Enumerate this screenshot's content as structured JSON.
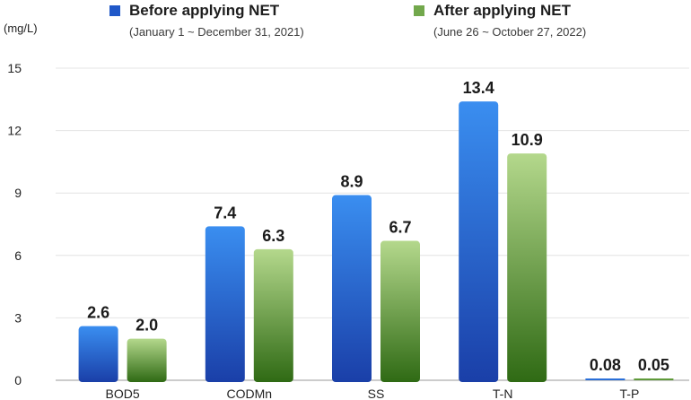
{
  "chart_data": {
    "type": "bar",
    "unit_label": "(mg/L)",
    "categories": [
      "BOD5",
      "CODMn",
      "SS",
      "T-N",
      "T-P"
    ],
    "series": [
      {
        "name": "Before applying NET",
        "period": "(January 1 ~ December 31, 2021)",
        "color": "#2060d8",
        "values": [
          2.6,
          7.4,
          8.9,
          13.4,
          0.08
        ],
        "labels": [
          "2.6",
          "7.4",
          "8.9",
          "13.4",
          "0.08"
        ]
      },
      {
        "name": "After applying NET",
        "period": "(June 26 ~ October 27, 2022)",
        "color": "#72a84c",
        "values": [
          2.0,
          6.3,
          6.7,
          10.9,
          0.05
        ],
        "labels": [
          "2.0",
          "6.3",
          "6.7",
          "10.9",
          "0.05"
        ]
      }
    ],
    "yticks": [
      "0",
      "3",
      "6",
      "9",
      "12",
      "15"
    ],
    "ylim": [
      0,
      15
    ],
    "grid": true,
    "legend_position": "top"
  }
}
